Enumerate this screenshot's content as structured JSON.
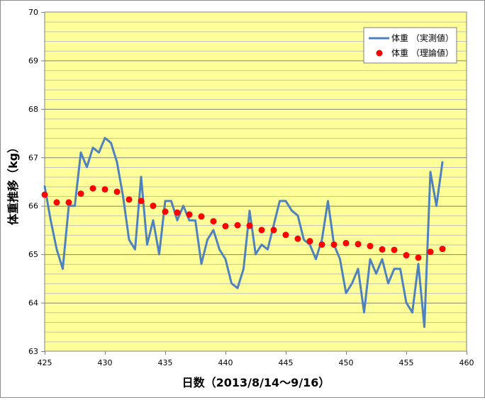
{
  "chart_data": {
    "type": "line",
    "title": "",
    "xlabel": "日数（2013/8/14～9/16）",
    "ylabel": "体重推移（kg）",
    "xlim": [
      425,
      460
    ],
    "ylim": [
      63,
      70
    ],
    "x_ticks": [
      "425",
      "430",
      "435",
      "440",
      "445",
      "450",
      "455",
      "460"
    ],
    "y_ticks": [
      "63",
      "64",
      "65",
      "66",
      "67",
      "68",
      "69",
      "70"
    ],
    "grid": true,
    "legend_position": "top-right",
    "colors": {
      "plot_background": "#ffff99",
      "line": "#4f81bd",
      "points": "#ff0000",
      "major_grid": "#808080",
      "minor_grid": "#c0c0c0"
    },
    "series": [
      {
        "name": "体重 （実測値）",
        "style": "line",
        "x": [
          425,
          425.5,
          426,
          426.5,
          427,
          427.5,
          428,
          428.5,
          429,
          429.5,
          430,
          430.5,
          431,
          431.5,
          432,
          432.5,
          433,
          433.5,
          434,
          434.5,
          435,
          435.5,
          436,
          436.5,
          437,
          437.5,
          438,
          438.5,
          439,
          439.5,
          440,
          440.5,
          441,
          441.5,
          442,
          442.5,
          443,
          443.5,
          444,
          444.5,
          445,
          445.5,
          446,
          446.5,
          447,
          447.5,
          448,
          448.5,
          449,
          449.5,
          450,
          450.5,
          451,
          451.5,
          452,
          452.5,
          453,
          453.5,
          454,
          454.5,
          455,
          455.5,
          456,
          456.5,
          457,
          457.5,
          458
        ],
        "values": [
          66.4,
          65.7,
          65.1,
          64.7,
          66.0,
          66.0,
          67.1,
          66.8,
          67.2,
          67.1,
          67.4,
          67.3,
          66.9,
          66.2,
          65.3,
          65.1,
          66.6,
          65.2,
          65.7,
          65.0,
          66.1,
          66.1,
          65.7,
          66.0,
          65.7,
          65.7,
          64.8,
          65.3,
          65.5,
          65.1,
          64.9,
          64.4,
          64.3,
          64.7,
          65.9,
          65.0,
          65.2,
          65.1,
          65.6,
          66.1,
          66.1,
          65.9,
          65.8,
          65.3,
          65.2,
          64.9,
          65.3,
          66.1,
          65.2,
          64.9,
          64.2,
          64.4,
          64.7,
          63.8,
          64.9,
          64.6,
          64.9,
          64.4,
          64.7,
          64.7,
          64.0,
          63.8,
          64.8,
          63.5,
          66.7,
          66.0,
          66.9
        ]
      },
      {
        "name": "体重 （理論値）",
        "style": "scatter",
        "x": [
          425,
          426,
          427,
          428,
          429,
          430,
          431,
          432,
          433,
          434,
          435,
          436,
          437,
          438,
          439,
          440,
          441,
          442,
          443,
          444,
          445,
          446,
          447,
          448,
          449,
          450,
          451,
          452,
          453,
          454,
          455,
          456,
          457,
          458
        ],
        "values": [
          66.23,
          66.07,
          66.07,
          66.25,
          66.36,
          66.34,
          66.29,
          66.13,
          66.1,
          66.0,
          65.88,
          65.86,
          65.82,
          65.78,
          65.68,
          65.58,
          65.6,
          65.59,
          65.5,
          65.5,
          65.4,
          65.32,
          65.27,
          65.2,
          65.2,
          65.23,
          65.21,
          65.17,
          65.1,
          65.09,
          64.98,
          64.93,
          65.05,
          65.11
        ]
      }
    ]
  }
}
